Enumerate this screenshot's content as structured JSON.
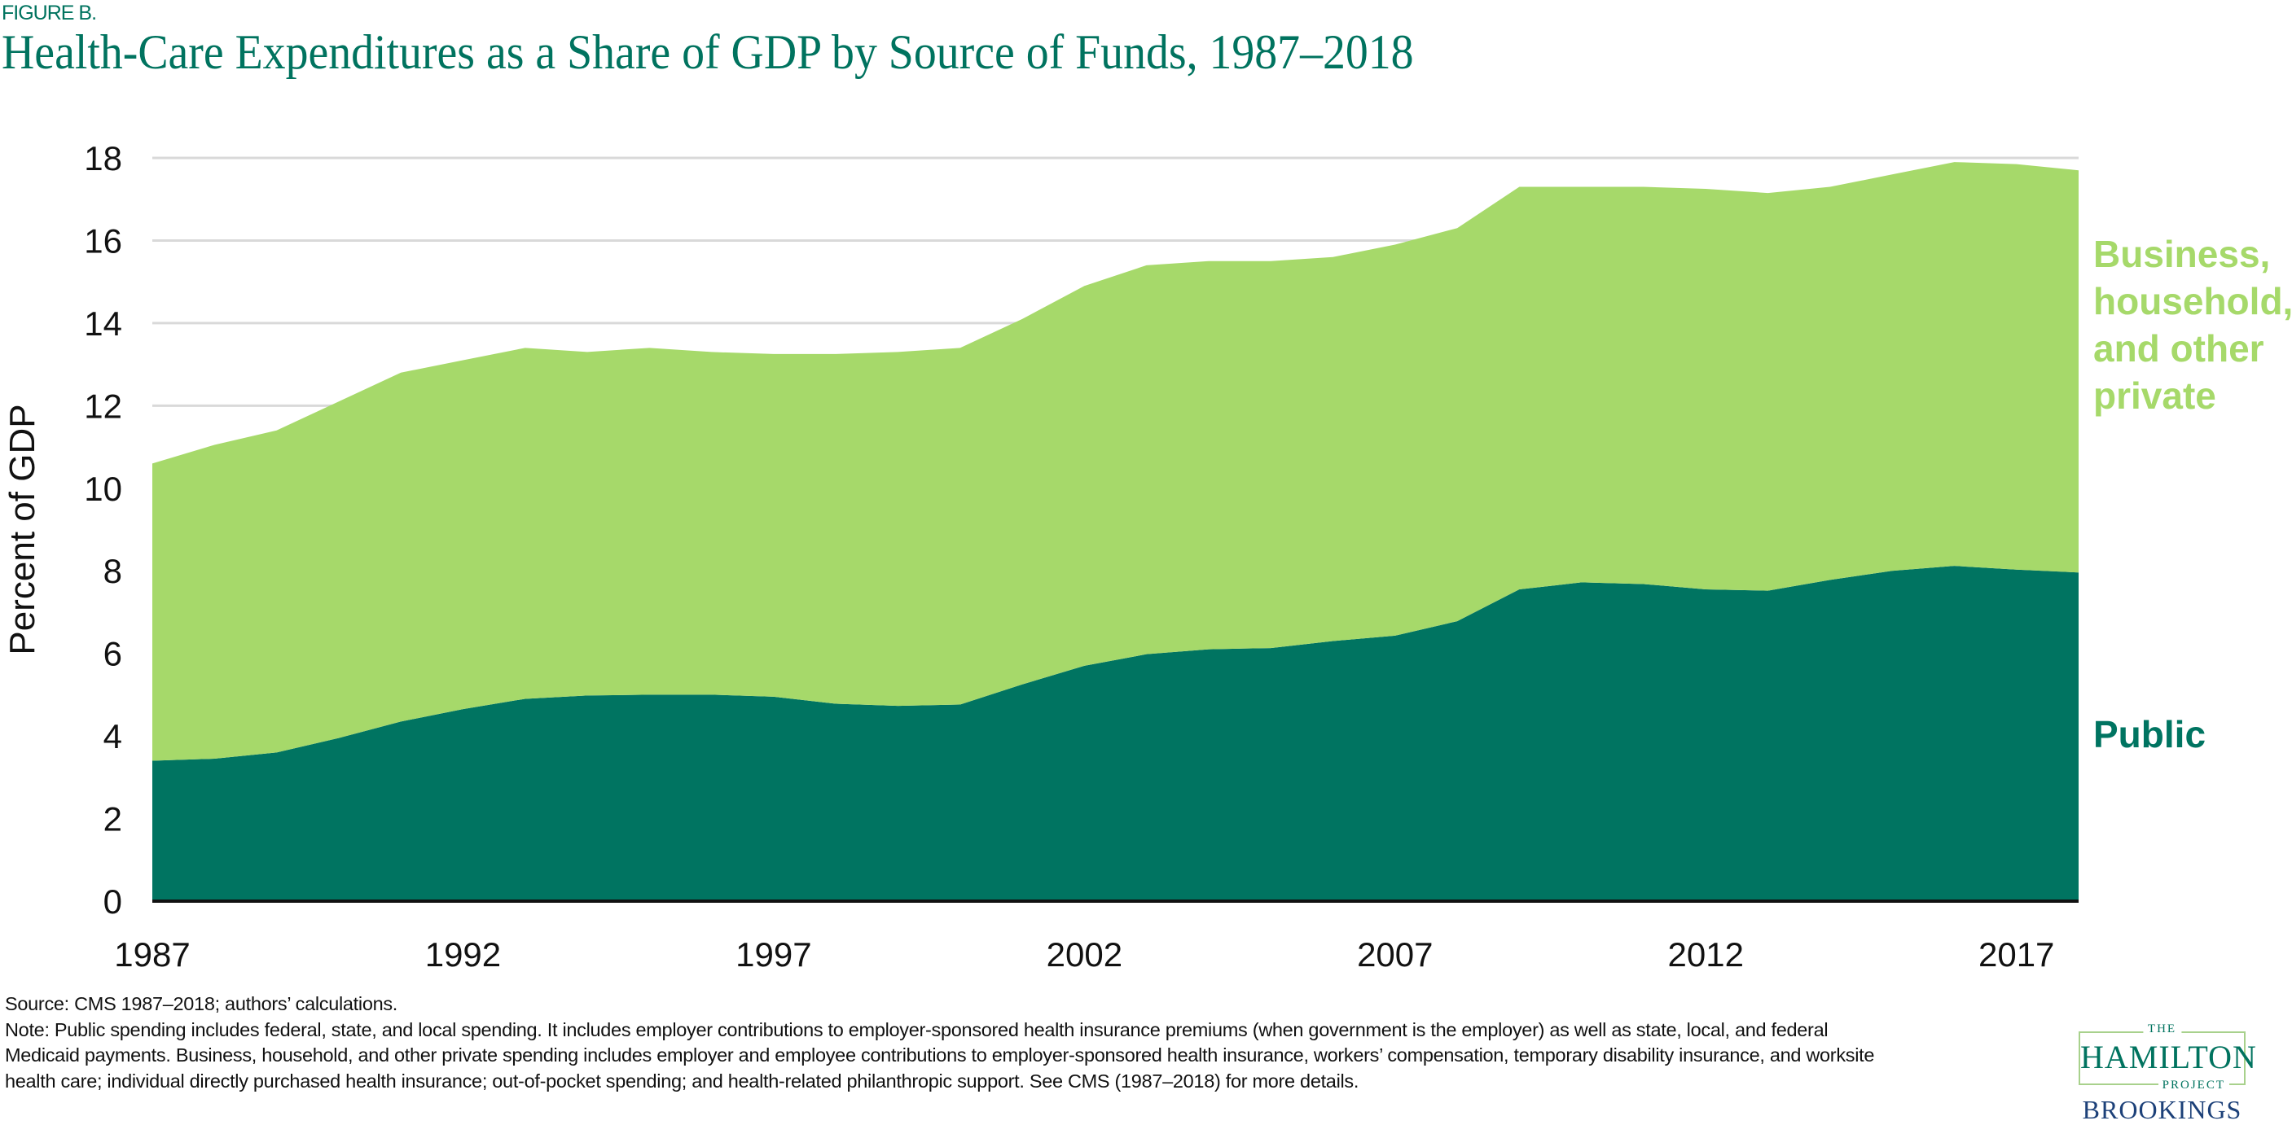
{
  "figure_label": "FIGURE B.",
  "title": "Health-Care Expenditures as a Share of GDP by Source of Funds, 1987–2018",
  "chart_data": {
    "type": "area",
    "stacked": true,
    "title": "Health-Care Expenditures as a Share of GDP by Source of Funds, 1987–2018",
    "ylabel": "Percent of GDP",
    "xlabel": "",
    "ylim": [
      0,
      18
    ],
    "yticks": [
      0,
      2,
      4,
      6,
      8,
      10,
      12,
      14,
      16,
      18
    ],
    "xticks": [
      1987,
      1992,
      1997,
      2002,
      2007,
      2012,
      2017
    ],
    "grid": true,
    "legend": "direct labels at right",
    "x": [
      1987,
      1988,
      1989,
      1990,
      1991,
      1992,
      1993,
      1994,
      1995,
      1996,
      1997,
      1998,
      1999,
      2000,
      2001,
      2002,
      2003,
      2004,
      2005,
      2006,
      2007,
      2008,
      2009,
      2010,
      2011,
      2012,
      2013,
      2014,
      2015,
      2016,
      2017,
      2018
    ],
    "series": [
      {
        "name": "Public",
        "color": "#007461",
        "values": [
          3.4,
          3.45,
          3.6,
          3.95,
          4.35,
          4.65,
          4.9,
          4.98,
          5.0,
          5.0,
          4.95,
          4.78,
          4.73,
          4.76,
          5.25,
          5.7,
          5.98,
          6.1,
          6.13,
          6.3,
          6.43,
          6.78,
          7.55,
          7.72,
          7.68,
          7.55,
          7.52,
          7.78,
          8.0,
          8.12,
          8.03,
          7.96
        ]
      },
      {
        "name": "Business, household, and other private",
        "color": "#a6d96a",
        "values": [
          7.2,
          7.6,
          7.8,
          8.15,
          8.45,
          8.45,
          8.5,
          8.32,
          8.4,
          8.3,
          8.3,
          8.47,
          8.57,
          8.64,
          8.85,
          9.2,
          9.42,
          9.4,
          9.37,
          9.3,
          9.47,
          9.52,
          9.75,
          9.58,
          9.62,
          9.7,
          9.63,
          9.52,
          9.6,
          9.78,
          9.82,
          9.74
        ]
      }
    ],
    "series_labels": [
      "Business, household, and other private",
      "Public"
    ]
  },
  "labels": {
    "private_lines": [
      "Business,",
      "household,",
      "and other",
      "private"
    ],
    "public": "Public"
  },
  "footer": {
    "source": "Source: CMS 1987–2018; authors’ calculations.",
    "note": "Note: Public spending includes federal, state, and local spending. It includes employer contributions to employer-sponsored health insurance premiums (when government is the employer) as well as state, local, and federal Medicaid payments. Business, household, and other private spending includes employer and employee contributions to employer-sponsored health insurance, workers’ compensation, temporary disability insurance, and worksite health care; individual directly purchased health insurance; out-of-pocket spending; and health-related philanthropic support. See CMS (1987–2018) for more details."
  },
  "logo": {
    "the": "THE",
    "hamilton": "HAMILTON",
    "project": "PROJECT",
    "brookings": "BROOKINGS"
  }
}
